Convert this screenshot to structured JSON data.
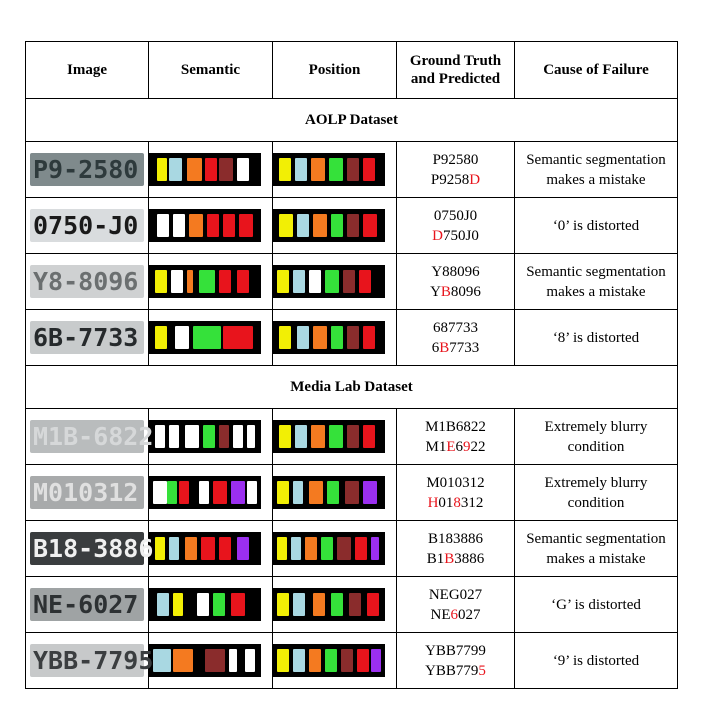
{
  "headers": {
    "image": "Image",
    "semantic": "Semantic",
    "position": "Position",
    "gt_line1": "Ground Truth",
    "gt_line2": "and Predicted",
    "cause": "Cause of Failure"
  },
  "sections": [
    {
      "title": "AOLP  Dataset",
      "rows": [
        {
          "plate_text": "P9-2580",
          "gt": "P92580",
          "pred": [
            {
              "t": "P9258",
              "err": false
            },
            {
              "t": "D",
              "err": true
            }
          ],
          "cause": [
            "Semantic segmentation",
            "makes a mistake"
          ]
        },
        {
          "plate_text": "0750-J0",
          "gt": "0750J0",
          "pred": [
            {
              "t": "D",
              "err": true
            },
            {
              "t": "750J0",
              "err": false
            }
          ],
          "cause": [
            "‘0’ is distorted"
          ]
        },
        {
          "plate_text": "Y8-8096",
          "gt": "Y88096",
          "pred": [
            {
              "t": "Y",
              "err": false
            },
            {
              "t": "B",
              "err": true
            },
            {
              "t": "8096",
              "err": false
            }
          ],
          "cause": [
            "Semantic segmentation",
            "makes a mistake"
          ]
        },
        {
          "plate_text": "6B-7733",
          "gt": "687733",
          "pred": [
            {
              "t": "6",
              "err": false
            },
            {
              "t": "B",
              "err": true
            },
            {
              "t": "7733",
              "err": false
            }
          ],
          "cause": [
            "‘8’ is distorted"
          ]
        }
      ]
    },
    {
      "title": "Media Lab Dataset",
      "rows": [
        {
          "plate_text": "M1B-6822",
          "gt": "M1B6822",
          "pred": [
            {
              "t": "M1",
              "err": false
            },
            {
              "t": "E",
              "err": true
            },
            {
              "t": "6",
              "err": false
            },
            {
              "t": "9",
              "err": true
            },
            {
              "t": "22",
              "err": false
            }
          ],
          "cause": [
            "Extremely blurry",
            "condition"
          ]
        },
        {
          "plate_text": "M010312",
          "gt": "M010312",
          "pred": [
            {
              "t": "H",
              "err": true
            },
            {
              "t": "01",
              "err": false
            },
            {
              "t": "8",
              "err": true
            },
            {
              "t": "312",
              "err": false
            }
          ],
          "cause": [
            "Extremely blurry",
            "condition"
          ]
        },
        {
          "plate_text": "B18-3886",
          "gt": "B183886",
          "pred": [
            {
              "t": "B1",
              "err": false
            },
            {
              "t": "B",
              "err": true
            },
            {
              "t": "3886",
              "err": false
            }
          ],
          "cause": [
            "Semantic segmentation",
            "makes a mistake"
          ]
        },
        {
          "plate_text": "NE-6027",
          "gt": "NEG027",
          "pred": [
            {
              "t": "NE",
              "err": false
            },
            {
              "t": "6",
              "err": true
            },
            {
              "t": "027",
              "err": false
            }
          ],
          "cause": [
            "‘G’ is distorted"
          ]
        },
        {
          "plate_text": "YBB-7795",
          "gt": "YBB7799",
          "pred": [
            {
              "t": "YBB779",
              "err": false
            },
            {
              "t": "5",
              "err": true
            }
          ],
          "cause": [
            "‘9’ is distorted"
          ]
        }
      ]
    }
  ],
  "colors": {
    "error_text": "#e8141c",
    "palette": [
      "#f2ef05",
      "#a9d8e2",
      "#ffffff",
      "#f47a20",
      "#e8141c",
      "#8a2c2c",
      "#35e13a",
      "#9b2ff0"
    ]
  }
}
